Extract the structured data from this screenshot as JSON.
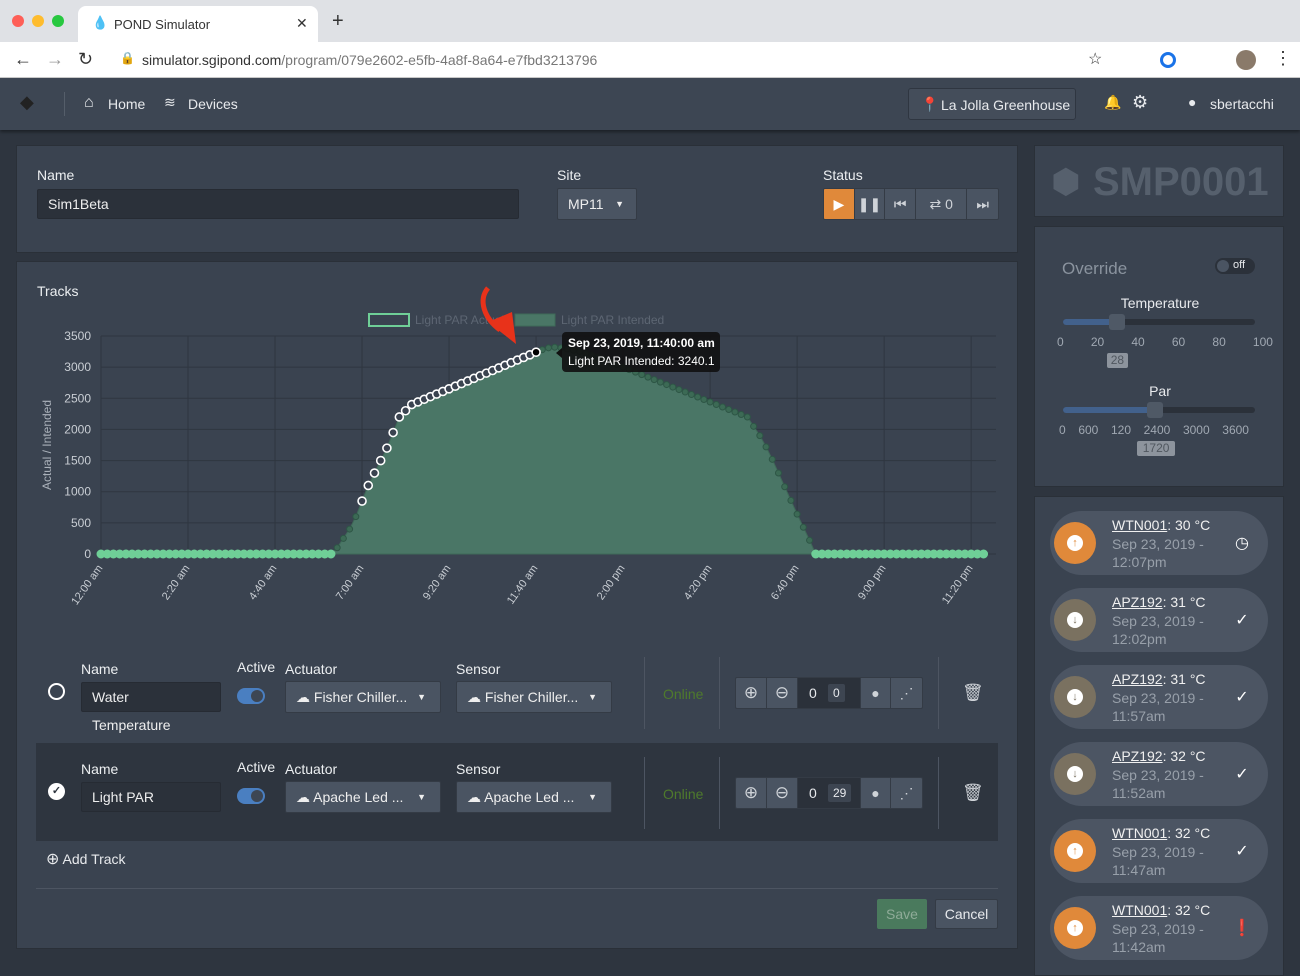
{
  "browser": {
    "tab_title": "POND Simulator",
    "url_domain": "simulator.sgipond.com",
    "url_path": "/program/079e2602-e5fb-4a8f-8a64-e7fbd3213796"
  },
  "nav": {
    "home": "Home",
    "devices": "Devices",
    "site": "La Jolla Greenhouse",
    "user": "sbertacchi"
  },
  "program": {
    "name_label": "Name",
    "name_value": "Sim1Beta",
    "site_label": "Site",
    "site_value": "MP11",
    "status_label": "Status",
    "loop_count": "0"
  },
  "device": {
    "title": "SMP0001"
  },
  "override": {
    "label": "Override",
    "toggle": "off",
    "temperature": {
      "label": "Temperature",
      "value": 28,
      "min": 0,
      "max": 100,
      "ticks": [
        "0",
        "20",
        "40",
        "60",
        "80",
        "100"
      ]
    },
    "par": {
      "label": "Par",
      "value": 1720,
      "min": 0,
      "max": 3600,
      "ticks": [
        "0",
        "600",
        "120",
        "2400",
        "3000",
        "3600"
      ]
    }
  },
  "tracks": {
    "title": "Tracks",
    "add_label": "Add Track",
    "save": "Save",
    "cancel": "Cancel",
    "headers": {
      "name": "Name",
      "active": "Active",
      "actuator": "Actuator",
      "sensor": "Sensor"
    },
    "rows": [
      {
        "selected": false,
        "name": "Water Temperature",
        "active": true,
        "actuator": "Fisher Chiller...",
        "sensor": "Fisher Chiller...",
        "status": "Online",
        "offset": "0",
        "value": "0"
      },
      {
        "selected": true,
        "name": "Light PAR",
        "active": true,
        "actuator": "Apache Led ...",
        "sensor": "Apache Led ...",
        "status": "Online",
        "offset": "0",
        "value": "29"
      }
    ]
  },
  "chart_data": {
    "type": "line",
    "ylabel": "Actual / Intended",
    "ylim": [
      0,
      3500
    ],
    "yticks": [
      "0",
      "500",
      "1000",
      "1500",
      "2000",
      "2500",
      "3000",
      "3500"
    ],
    "xticks": [
      "12:00 am",
      "2:20 am",
      "4:40 am",
      "7:00 am",
      "9:20 am",
      "11:40 am",
      "2:00 pm",
      "4:20 pm",
      "6:40 pm",
      "9:00 pm",
      "11:20 pm"
    ],
    "x_start": "12:00 am",
    "interval_minutes": 10,
    "grid": true,
    "legend": "top",
    "series": [
      {
        "name": "Light PAR Actual",
        "color": "#ffffff",
        "values": [
          null,
          null,
          null,
          null,
          null,
          null,
          null,
          null,
          null,
          null,
          null,
          null,
          null,
          null,
          null,
          null,
          null,
          null,
          null,
          null,
          null,
          null,
          null,
          null,
          null,
          null,
          null,
          null,
          null,
          null,
          null,
          null,
          null,
          null,
          null,
          null,
          null,
          null,
          null,
          null,
          null,
          null,
          850,
          1100,
          1300,
          1500,
          1700,
          1950,
          2200,
          2300,
          2400,
          2442,
          2484,
          2526,
          2568,
          2610,
          2652,
          2694,
          2736,
          2778,
          2820,
          2862,
          2904,
          2946,
          2988,
          3030,
          3072,
          3114,
          3156,
          3198,
          3240
        ]
      },
      {
        "name": "Light PAR Intended",
        "color": "#4a7a68",
        "values": [
          0,
          0,
          0,
          0,
          0,
          0,
          0,
          0,
          0,
          0,
          0,
          0,
          0,
          0,
          0,
          0,
          0,
          0,
          0,
          0,
          0,
          0,
          0,
          0,
          0,
          0,
          0,
          0,
          0,
          0,
          0,
          0,
          0,
          0,
          0,
          0,
          0,
          0,
          100,
          250,
          400,
          600,
          850,
          1100,
          1300,
          1500,
          1700,
          1950,
          2200,
          2300,
          2400,
          2442,
          2484,
          2526,
          2568,
          2610,
          2652,
          2694,
          2736,
          2778,
          2820,
          2862,
          2904,
          2946,
          2988,
          3030,
          3072,
          3114,
          3156,
          3198,
          3240,
          3280,
          3310,
          3320,
          3310,
          3290,
          3270,
          3250,
          3220,
          3190,
          3160,
          3120,
          3080,
          3040,
          3000,
          2960,
          2920,
          2880,
          2840,
          2800,
          2760,
          2720,
          2680,
          2640,
          2600,
          2560,
          2520,
          2480,
          2440,
          2400,
          2360,
          2320,
          2280,
          2240,
          2200,
          2050,
          1900,
          1720,
          1520,
          1300,
          1080,
          860,
          640,
          430,
          220,
          0,
          0,
          0,
          0,
          0,
          0,
          0,
          0,
          0,
          0,
          0,
          0,
          0,
          0,
          0,
          0,
          0,
          0,
          0,
          0,
          0,
          0,
          0,
          0,
          0,
          0,
          0,
          0
        ]
      }
    ],
    "tooltip": {
      "title": "Sep 23, 2019, 11:40:00 am",
      "body": "Light PAR Intended: 3240.1"
    }
  },
  "notifications": [
    {
      "device": "WTN001",
      "value": ": 30 °C",
      "time": "Sep 23, 2019 - 12:07pm",
      "direction": "up",
      "status": "clock-icon"
    },
    {
      "device": "APZ192",
      "value": ": 31 °C",
      "time": "Sep 23, 2019 - 12:02pm",
      "direction": "down",
      "status": "check-icon"
    },
    {
      "device": "APZ192",
      "value": ": 31 °C",
      "time": "Sep 23, 2019 - 11:57am",
      "direction": "down",
      "status": "check-icon"
    },
    {
      "device": "APZ192",
      "value": ": 32 °C",
      "time": "Sep 23, 2019 - 11:52am",
      "direction": "down",
      "status": "check-icon"
    },
    {
      "device": "WTN001",
      "value": ": 32 °C",
      "time": "Sep 23, 2019 - 11:47am",
      "direction": "up",
      "status": "check-icon"
    },
    {
      "device": "WTN001",
      "value": ": 32 °C",
      "time": "Sep 23, 2019 - 11:42am",
      "direction": "up",
      "status": "alert-icon"
    }
  ],
  "colors": {
    "accent": "#e0893a",
    "online": "#4e7a2c",
    "toggle": "#4a7fc1",
    "down": "#7a7160"
  }
}
